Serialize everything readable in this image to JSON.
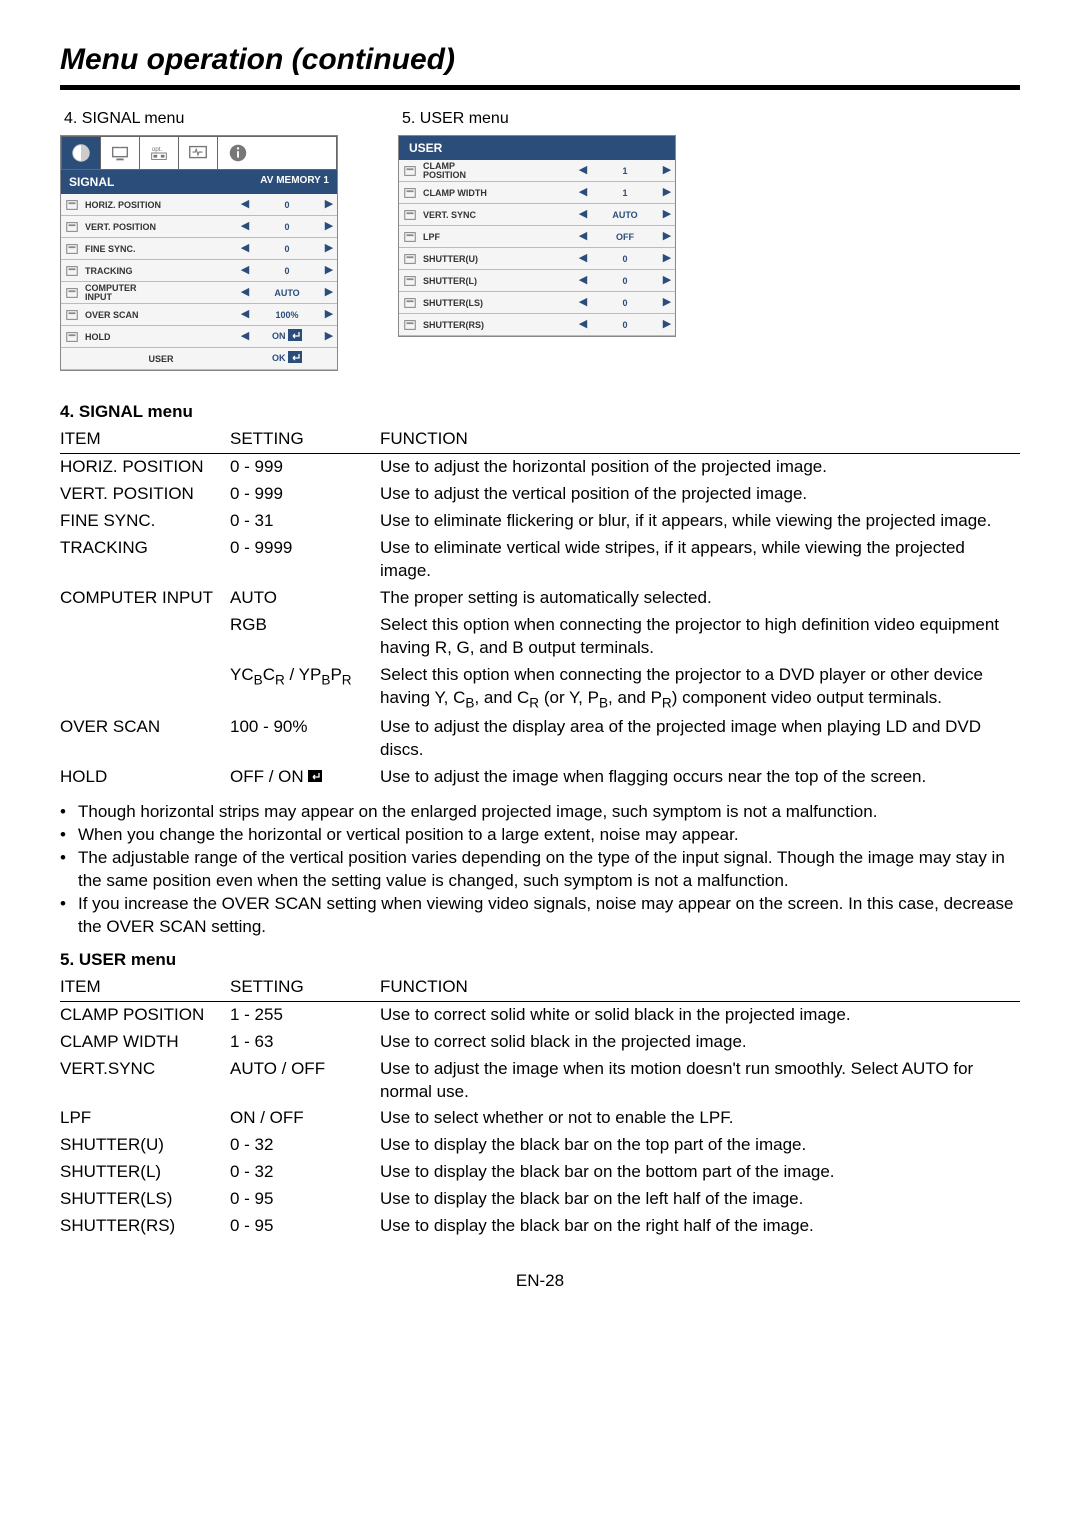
{
  "page_title": "Menu operation (continued)",
  "page_number": "EN-28",
  "shot_labels": {
    "signal": "4. SIGNAL menu",
    "user": "5. USER menu"
  },
  "signal_panel": {
    "header_left": "SIGNAL",
    "header_right": "AV MEMORY 1",
    "rows": [
      {
        "label": "HORIZ. POSITION",
        "value": "0"
      },
      {
        "label": "VERT. POSITION",
        "value": "0"
      },
      {
        "label": "FINE SYNC.",
        "value": "0"
      },
      {
        "label": "TRACKING",
        "value": "0"
      },
      {
        "label": "COMPUTER INPUT",
        "value": "AUTO",
        "twoline": true
      },
      {
        "label": "OVER SCAN",
        "value": "100%"
      },
      {
        "label": "HOLD",
        "value": "ON",
        "enter": true
      }
    ],
    "last": {
      "label": "USER",
      "value": "OK",
      "enter": true
    }
  },
  "user_panel": {
    "header": "USER",
    "rows": [
      {
        "label": "CLAMP POSITION",
        "value": "1",
        "twoline": true
      },
      {
        "label": "CLAMP WIDTH",
        "value": "1"
      },
      {
        "label": "VERT. SYNC",
        "value": "AUTO"
      },
      {
        "label": "LPF",
        "value": "OFF"
      },
      {
        "label": "SHUTTER(U)",
        "value": "0"
      },
      {
        "label": "SHUTTER(L)",
        "value": "0"
      },
      {
        "label": "SHUTTER(LS)",
        "value": "0"
      },
      {
        "label": "SHUTTER(RS)",
        "value": "0"
      }
    ]
  },
  "sections": {
    "signal": {
      "title": "4. SIGNAL menu",
      "headers": {
        "item": "ITEM",
        "setting": "SETTING",
        "function": "FUNCTION"
      },
      "rows": [
        {
          "item": "HORIZ. POSITION",
          "setting": "0 - 999",
          "function": "Use to adjust the horizontal position of the projected image."
        },
        {
          "item": "VERT. POSITION",
          "setting": "0 - 999",
          "function": "Use to adjust the vertical position of the projected image."
        },
        {
          "item": "FINE SYNC.",
          "setting": "0 - 31",
          "function": "Use to eliminate flickering or blur, if it appears, while viewing the projected image."
        },
        {
          "item": "TRACKING",
          "setting": "0 - 9999",
          "function": "Use to eliminate vertical wide stripes, if it appears, while viewing the projected image."
        },
        {
          "item": "COMPUTER INPUT",
          "setting": "AUTO",
          "function": "The proper setting is automatically selected."
        },
        {
          "item": "",
          "setting": "RGB",
          "function": "Select this option when connecting the projector to high definition video equipment having R, G, and B output terminals."
        },
        {
          "item": "",
          "setting_html": "YC<span class='sub'>B</span>C<span class='sub'>R</span> / YP<span class='sub'>B</span>P<span class='sub'>R</span>",
          "function_html": "Select this option when connecting the projector to a DVD player or other device having Y, C<span class='sub'>B</span>, and C<span class='sub'>R</span> (or Y, P<span class='sub'>B</span>, and P<span class='sub'>R</span>) component video output terminals."
        },
        {
          "item": "OVER SCAN",
          "setting": "100 - 90%",
          "function": "Use to adjust the display area of the projected image when playing LD and DVD discs."
        },
        {
          "item": "HOLD",
          "setting_html": "OFF / ON <span class='enter-icon'><svg viewBox='0 0 14 12'><rect x='0' y='0' width='14' height='12' fill='#000'/><path d='M11 3 L11 7 L5 7 M5 7 L7 5 M5 7 L7 9' stroke='#fff' stroke-width='1.3' fill='none'/></svg></span>",
          "function": "Use to adjust the image when flagging occurs near the top of the screen."
        }
      ],
      "notes": [
        "Though horizontal strips may appear on the enlarged projected image, such symptom is not a malfunction.",
        "When you change the horizontal or vertical position to a large extent, noise may appear.",
        "The adjustable range of the vertical position varies depending on the type of the input signal. Though the image may stay in the same position even when the setting value is changed, such symptom is not a malfunction.",
        "If you increase the OVER SCAN setting when viewing video signals, noise may appear on the screen. In this case, decrease the OVER SCAN setting."
      ]
    },
    "user": {
      "title": "5. USER menu",
      "headers": {
        "item": "ITEM",
        "setting": "SETTING",
        "function": "FUNCTION"
      },
      "rows": [
        {
          "item": "CLAMP POSITION",
          "setting": "1 - 255",
          "function": "Use to correct solid white or solid black in the projected image."
        },
        {
          "item": "CLAMP WIDTH",
          "setting": "1 - 63",
          "function": "Use to correct solid black in the projected image."
        },
        {
          "item": "VERT.SYNC",
          "setting": "AUTO / OFF",
          "function": "Use to adjust the image when its motion doesn't run smoothly. Select AUTO for normal use."
        },
        {
          "item": "LPF",
          "setting": "ON / OFF",
          "function": "Use to select whether or not to enable the LPF."
        },
        {
          "item": "SHUTTER(U)",
          "setting": "0 - 32",
          "function": "Use to display the black bar on the top part of the image."
        },
        {
          "item": "SHUTTER(L)",
          "setting": "0 - 32",
          "function": "Use to display the black bar on the bottom part of the image."
        },
        {
          "item": "SHUTTER(LS)",
          "setting": "0 - 95",
          "function": "Use to display the black bar on the left half of the image."
        },
        {
          "item": "SHUTTER(RS)",
          "setting": "0 - 95",
          "function": "Use to display the black bar on the right half of the image."
        }
      ]
    }
  }
}
